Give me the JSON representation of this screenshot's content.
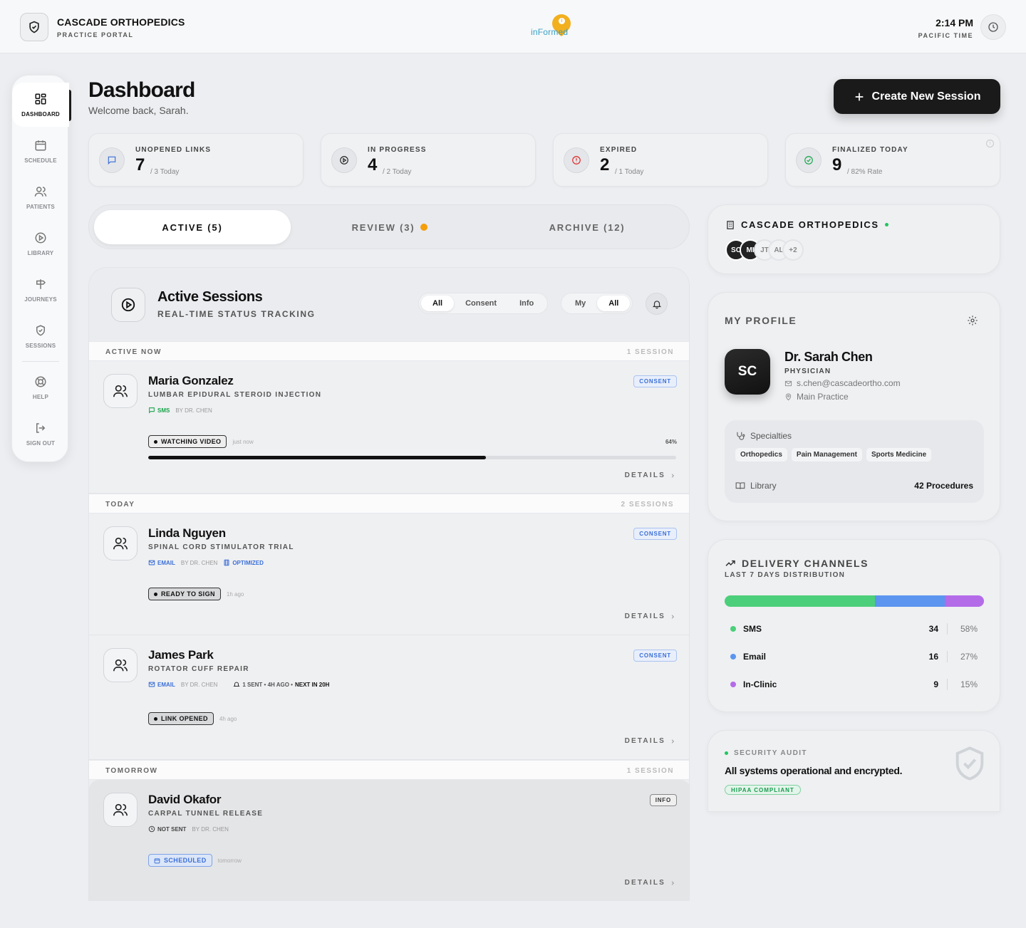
{
  "header": {
    "brand_name": "CASCADE ORTHOPEDICS",
    "brand_sub": "PRACTICE PORTAL",
    "logo_text": "inFormed",
    "time": "2:14 PM",
    "timezone": "PACIFIC TIME"
  },
  "sidebar": {
    "items": [
      {
        "label": "DASHBOARD",
        "icon": "grid-icon"
      },
      {
        "label": "SCHEDULE",
        "icon": "calendar-icon"
      },
      {
        "label": "PATIENTS",
        "icon": "users-icon"
      },
      {
        "label": "LIBRARY",
        "icon": "play-circle-icon"
      },
      {
        "label": "JOURNEYS",
        "icon": "signpost-icon"
      },
      {
        "label": "SESSIONS",
        "icon": "shield-check-icon"
      },
      {
        "label": "HELP",
        "icon": "lifebuoy-icon"
      },
      {
        "label": "SIGN OUT",
        "icon": "logout-icon"
      }
    ]
  },
  "page": {
    "title": "Dashboard",
    "welcome": "Welcome back, Sarah.",
    "create_label": "Create New Session"
  },
  "stats": [
    {
      "label": "UNOPENED LINKS",
      "value": "7",
      "sub": "/ 3 Today",
      "color": "#3b6fd8"
    },
    {
      "label": "IN PROGRESS",
      "value": "4",
      "sub": "/ 2 Today",
      "color": "#222222"
    },
    {
      "label": "EXPIRED",
      "value": "2",
      "sub": "/ 1 Today",
      "color": "#dc2626"
    },
    {
      "label": "FINALIZED TODAY",
      "value": "9",
      "sub": "/ 82% Rate",
      "color": "#16a34a"
    }
  ],
  "tabs": [
    {
      "label": "ACTIVE (5)"
    },
    {
      "label": "REVIEW (3)"
    },
    {
      "label": "ARCHIVE (12)"
    }
  ],
  "sessions": {
    "title": "Active Sessions",
    "subtitle": "REAL-TIME STATUS TRACKING",
    "filter_type": [
      "All",
      "Consent",
      "Info"
    ],
    "filter_owner": [
      "My",
      "All"
    ],
    "groups": [
      {
        "label": "ACTIVE NOW",
        "count": "1 SESSION"
      },
      {
        "label": "TODAY",
        "count": "2 SESSIONS"
      },
      {
        "label": "TOMORROW",
        "count": "1 SESSION"
      }
    ],
    "rows": [
      {
        "name": "Maria Gonzalez",
        "procedure": "LUMBAR EPIDURAL STEROID INJECTION",
        "channel": "SMS",
        "by": "BY DR. CHEN",
        "badge": "CONSENT",
        "status": "WATCHING VIDEO",
        "ago": "just now",
        "progress_label": "64%",
        "progress": 0.64,
        "details": "DETAILS"
      },
      {
        "name": "Linda Nguyen",
        "procedure": "SPINAL CORD STIMULATOR TRIAL",
        "channel": "EMAIL",
        "by": "BY DR. CHEN",
        "extra": "OPTIMIZED",
        "badge": "CONSENT",
        "status": "READY TO SIGN",
        "ago": "1h ago",
        "details": "DETAILS"
      },
      {
        "name": "James Park",
        "procedure": "ROTATOR CUFF REPAIR",
        "channel": "EMAIL",
        "by": "BY DR. CHEN",
        "reminder": "1 SENT • 4H AGO •",
        "next": "NEXT IN 20H",
        "badge": "CONSENT",
        "status": "LINK OPENED",
        "ago": "4h ago",
        "details": "DETAILS"
      },
      {
        "name": "David Okafor",
        "procedure": "CARPAL TUNNEL RELEASE",
        "channel": "NOT SENT",
        "by": "BY DR. CHEN",
        "badge": "INFO",
        "status": "SCHEDULED",
        "ago": "tomorrow",
        "details": "DETAILS"
      }
    ]
  },
  "org": {
    "name": "CASCADE ORTHOPEDICS",
    "avatars": [
      "SC",
      "MI",
      "JT",
      "AL",
      "+2"
    ]
  },
  "profile": {
    "title": "MY PROFILE",
    "initials": "SC",
    "name": "Dr. Sarah Chen",
    "role": "PHYSICIAN",
    "email": "s.chen@cascadeortho.com",
    "location": "Main Practice",
    "specialties_label": "Specialties",
    "specialties": [
      "Orthopedics",
      "Pain Management",
      "Sports Medicine"
    ],
    "library_label": "Library",
    "library_value": "42 Procedures"
  },
  "delivery": {
    "title": "DELIVERY CHANNELS",
    "subtitle": "LAST 7 DAYS DISTRIBUTION",
    "channels": [
      {
        "name": "SMS",
        "count": "34",
        "pct": "58%",
        "share": 0.58,
        "color": "#4ccf7a"
      },
      {
        "name": "Email",
        "count": "16",
        "pct": "27%",
        "share": 0.27,
        "color": "#5b95f0"
      },
      {
        "name": "In-Clinic",
        "count": "9",
        "pct": "15%",
        "share": 0.15,
        "color": "#b46be8"
      }
    ]
  },
  "security": {
    "label": "SECURITY AUDIT",
    "message": "All systems operational and encrypted.",
    "badge": "HIPAA COMPLIANT"
  }
}
